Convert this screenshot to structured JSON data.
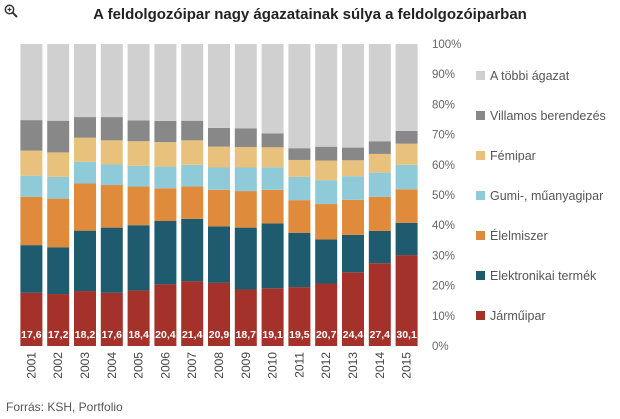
{
  "title": "A feldolgozóipar nagy ágazatainak súlya a feldolgozóiparban",
  "source": "Forrás: KSH, Portfolio",
  "chart_data": {
    "type": "bar",
    "stacked": true,
    "title": "A feldolgozóipar nagy ágazatainak súlya a feldolgozóiparban",
    "xlabel": "",
    "ylabel": "",
    "ylim": [
      0,
      100
    ],
    "yticks": [
      "0%",
      "10%",
      "20%",
      "30%",
      "40%",
      "50%",
      "60%",
      "70%",
      "80%",
      "90%",
      "100%"
    ],
    "legend_position": "right",
    "categories": [
      "2001",
      "2002",
      "2003",
      "2004",
      "2005",
      "2006",
      "2007",
      "2008",
      "2009",
      "2010",
      "2011",
      "2012",
      "2013",
      "2014",
      "2015"
    ],
    "series": [
      {
        "name": "Járműipar",
        "color": "#a5322a",
        "values": [
          17.6,
          17.2,
          18.2,
          17.6,
          18.4,
          20.4,
          21.4,
          20.9,
          18.7,
          19.1,
          19.5,
          20.7,
          24.4,
          27.4,
          30.1
        ],
        "labels": [
          "17,6",
          "17,2",
          "18,2",
          "17,6",
          "18,4",
          "20,4",
          "21,4",
          "20,9",
          "18,7",
          "19,1",
          "19,5",
          "20,7",
          "24,4",
          "27,4",
          "30,1"
        ]
      },
      {
        "name": "Elektronikai termék",
        "color": "#1e5b6e",
        "values": [
          15.8,
          15.5,
          20.0,
          21.6,
          21.6,
          21.0,
          20.7,
          18.7,
          20.5,
          21.5,
          18.0,
          14.6,
          12.4,
          10.7,
          10.7
        ]
      },
      {
        "name": "Élelmiszer",
        "color": "#e08a3c",
        "values": [
          16.0,
          16.1,
          15.6,
          14.1,
          12.8,
          10.8,
          10.7,
          12.1,
          12.1,
          11.1,
          10.8,
          11.7,
          11.6,
          11.3,
          11.1
        ]
      },
      {
        "name": "Gumi-, műanyagipar",
        "color": "#8fcad8",
        "values": [
          7.0,
          7.2,
          7.2,
          6.8,
          6.9,
          7.2,
          7.2,
          7.4,
          7.8,
          7.5,
          7.7,
          7.9,
          7.8,
          8.0,
          8.1
        ]
      },
      {
        "name": "Fémipar",
        "color": "#e8c27c",
        "values": [
          8.3,
          8.1,
          8.0,
          8.0,
          8.1,
          8.1,
          8.1,
          6.9,
          6.8,
          6.6,
          5.6,
          6.5,
          5.3,
          6.2,
          7.0
        ]
      },
      {
        "name": "Villamos berendezés",
        "color": "#888888",
        "values": [
          10.1,
          10.5,
          6.8,
          7.7,
          6.9,
          7.0,
          6.5,
          6.2,
          6.2,
          4.6,
          3.9,
          4.6,
          4.2,
          4.2,
          4.2
        ]
      },
      {
        "name": "A többi  ágazat",
        "color": "#d0d0d0",
        "values": [
          25.2,
          25.4,
          24.2,
          24.2,
          25.3,
          25.5,
          25.4,
          27.8,
          27.9,
          29.6,
          34.5,
          34.0,
          34.3,
          32.2,
          28.8
        ]
      }
    ]
  }
}
